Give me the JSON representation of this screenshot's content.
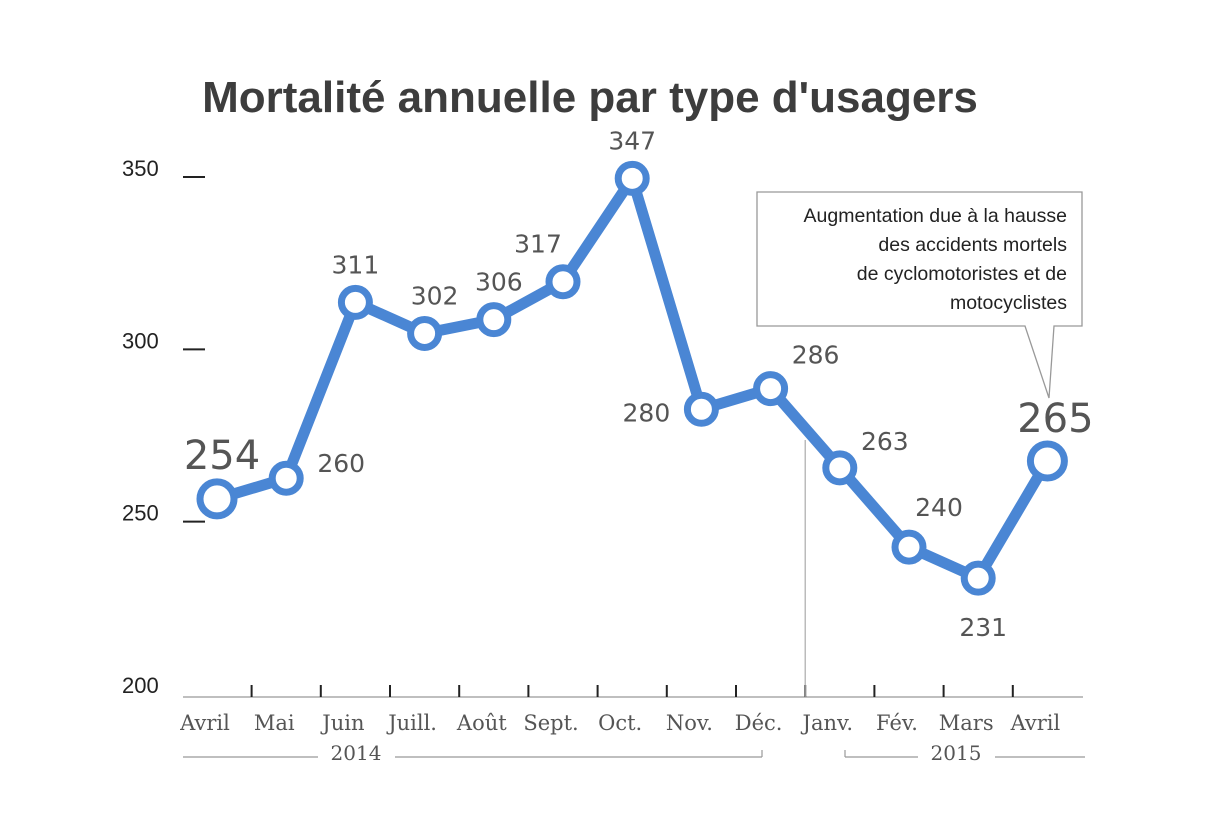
{
  "chart_data": {
    "type": "line",
    "title": "Mortalité annuelle par type d'usagers",
    "categories": [
      "Avril",
      "Mai",
      "Juin",
      "Juill.",
      "Août",
      "Sept.",
      "Oct.",
      "Nov.",
      "Déc.",
      "Janv.",
      "Fév.",
      "Mars",
      "Avril"
    ],
    "year_groups": [
      {
        "label": "2014",
        "from": 0,
        "to": 8
      },
      {
        "label": "2015",
        "from": 9,
        "to": 12
      }
    ],
    "series": [
      {
        "values": [
          254,
          260,
          311,
          302,
          306,
          317,
          347,
          280,
          286,
          263,
          240,
          231,
          265
        ]
      }
    ],
    "yticks": [
      200,
      250,
      300,
      350
    ],
    "ylim": [
      200,
      350
    ],
    "grid": false,
    "colors": {
      "line": "#4a86d4",
      "marker_fill": "#ffffff"
    },
    "annotation": {
      "text": [
        "Augmentation due à la hausse",
        "des accidents mortels",
        "de cyclomotoristes et de",
        "motocyclistes"
      ],
      "points_to_index": 12
    }
  }
}
